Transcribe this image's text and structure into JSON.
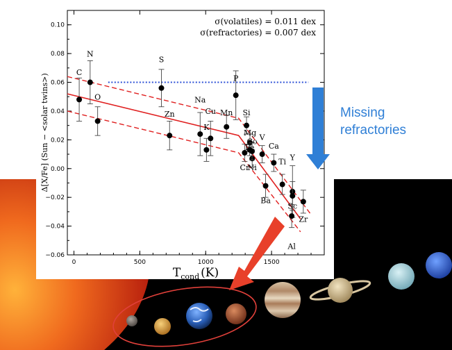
{
  "chart_data": {
    "type": "scatter",
    "xlabel": "T",
    "xlabel_sub": "cond",
    "xlabel_unit": "(K)",
    "ylabel": "Δ[X/Fe] (Sun − <solar twins>)",
    "xlim": [
      -50,
      1900
    ],
    "ylim": [
      -0.06,
      0.11
    ],
    "xticks": [
      0,
      500,
      1000,
      1500
    ],
    "yticks": [
      -0.06,
      -0.04,
      -0.02,
      0.0,
      0.02,
      0.04,
      0.06,
      0.08,
      0.1
    ],
    "ytick_labels": [
      "−0.06",
      "−0.04",
      "−0.02",
      "0.00",
      "0.02",
      "0.04",
      "0.06",
      "0.08",
      "0.10"
    ],
    "annotations": [
      "σ(volatiles) = 0.011 dex",
      "σ(refractories) = 0.007 dex"
    ],
    "points": [
      {
        "label": "C",
        "x": 40,
        "y": 0.048,
        "err": 0.015,
        "lx": 40,
        "ly": 0.065
      },
      {
        "label": "N",
        "x": 123,
        "y": 0.06,
        "err": 0.015,
        "lx": 123,
        "ly": 0.078
      },
      {
        "label": "O",
        "x": 180,
        "y": 0.033,
        "err": 0.01,
        "lx": 180,
        "ly": 0.048
      },
      {
        "label": "S",
        "x": 664,
        "y": 0.056,
        "err": 0.013,
        "lx": 664,
        "ly": 0.074
      },
      {
        "label": "Zn",
        "x": 726,
        "y": 0.023,
        "err": 0.01,
        "lx": 726,
        "ly": 0.036
      },
      {
        "label": "Na",
        "x": 958,
        "y": 0.024,
        "err": 0.015,
        "lx": 958,
        "ly": 0.046
      },
      {
        "label": "K",
        "x": 1006,
        "y": 0.013,
        "err": 0.008,
        "lx": 1006,
        "ly": 0.027
      },
      {
        "label": "Cu",
        "x": 1037,
        "y": 0.021,
        "err": 0.012,
        "lx": 1037,
        "ly": 0.038
      },
      {
        "label": "Mn",
        "x": 1158,
        "y": 0.029,
        "err": 0.008,
        "lx": 1158,
        "ly": 0.037
      },
      {
        "label": "P",
        "x": 1229,
        "y": 0.051,
        "err": 0.017,
        "lx": 1229,
        "ly": 0.061
      },
      {
        "label": "Si",
        "x": 1310,
        "y": 0.03,
        "err": 0.006,
        "lx": 1310,
        "ly": 0.037
      },
      {
        "label": "Mg",
        "x": 1336,
        "y": 0.018,
        "err": 0.006,
        "lx": 1336,
        "ly": 0.023
      },
      {
        "label": "Cr",
        "x": 1296,
        "y": 0.011,
        "err": 0.006,
        "lx": 1296,
        "ly": -0.001
      },
      {
        "label": "Ni",
        "x": 1353,
        "y": 0.007,
        "err": 0.006,
        "lx": 1353,
        "ly": -0.001
      },
      {
        "label": "Fe",
        "x": 1334,
        "y": 0.013,
        "err": 0.004,
        "lx": 1334,
        "ly": 0.013
      },
      {
        "label": "V",
        "x": 1429,
        "y": 0.01,
        "err": 0.006,
        "lx": 1429,
        "ly": 0.02
      },
      {
        "label": "Co",
        "x": 1352,
        "y": 0.012,
        "err": 0.006,
        "lx": 1352,
        "ly": 0.017
      },
      {
        "label": "Ca",
        "x": 1517,
        "y": 0.004,
        "err": 0.006,
        "lx": 1517,
        "ly": 0.014
      },
      {
        "label": "Ti",
        "x": 1582,
        "y": -0.011,
        "err": 0.007,
        "lx": 1582,
        "ly": 0.003
      },
      {
        "label": "Ba",
        "x": 1455,
        "y": -0.012,
        "err": 0.008,
        "lx": 1455,
        "ly": -0.024
      },
      {
        "label": "Y",
        "x": 1659,
        "y": -0.016,
        "err": 0.018,
        "lx": 1659,
        "ly": 0.006
      },
      {
        "label": "Sc",
        "x": 1659,
        "y": -0.019,
        "err": 0.01,
        "lx": 1659,
        "ly": -0.028
      },
      {
        "label": "Zr",
        "x": 1741,
        "y": -0.023,
        "err": 0.008,
        "lx": 1741,
        "ly": -0.037
      },
      {
        "label": "Al",
        "x": 1653,
        "y": -0.033,
        "err": 0.008,
        "lx": 1653,
        "ly": -0.056
      }
    ],
    "fit_line": [
      [
        -50,
        0.052
      ],
      [
        1250,
        0.023
      ],
      [
        1720,
        -0.035
      ]
    ],
    "fit_upper": [
      [
        -50,
        0.064
      ],
      [
        1250,
        0.035
      ],
      [
        1800,
        -0.032
      ]
    ],
    "fit_lower": [
      [
        -50,
        0.04
      ],
      [
        1250,
        0.011
      ],
      [
        1720,
        -0.044
      ]
    ],
    "reference_line": {
      "x_start": 260,
      "x_end": 1780,
      "y": 0.06,
      "color": "#2a4fd6"
    },
    "colors": {
      "fit": "#e02020",
      "reference": "#2a4fd6",
      "points": "#000000",
      "errorbars": "#444444"
    }
  },
  "callout": {
    "lines": [
      "Missing",
      "refractories"
    ],
    "color": "#2f7fd6",
    "arrow_color": "#2f7fd6"
  },
  "background": {
    "description_free": true,
    "sun_color": "#e6401a",
    "space_color": "#000000",
    "pointer_arrow_color": "#e8402a",
    "orbit_ellipse_color": "#e0403a"
  }
}
